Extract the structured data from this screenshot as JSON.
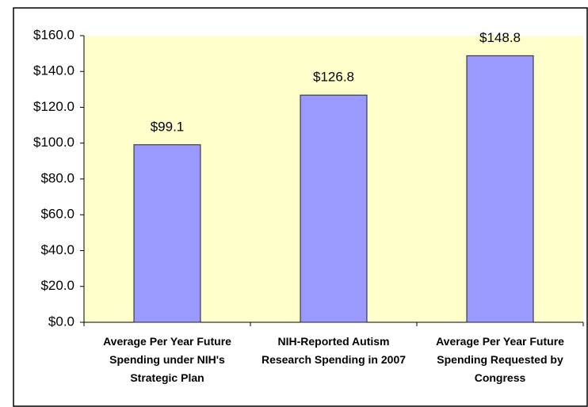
{
  "chart_data": {
    "type": "bar",
    "categories": [
      "Average Per Year Future Spending under NIH's Strategic Plan",
      "NIH-Reported Autism Research Spending in 2007",
      "Average Per Year Future Spending Requested by Congress"
    ],
    "values": [
      99.1,
      126.8,
      148.8
    ],
    "value_labels": [
      "$99.1",
      "$126.8",
      "$148.8"
    ],
    "color": "#9999ff",
    "ylim": [
      0,
      160
    ],
    "yticks": [
      {
        "value": 0,
        "label": "$0.0"
      },
      {
        "value": 20,
        "label": "$20.0"
      },
      {
        "value": 40,
        "label": "$40.0"
      },
      {
        "value": 60,
        "label": "$60.0"
      },
      {
        "value": 80,
        "label": "$80.0"
      },
      {
        "value": 100,
        "label": "$100.0"
      },
      {
        "value": 120,
        "label": "$120.0"
      },
      {
        "value": 140,
        "label": "$140.0"
      },
      {
        "value": 160,
        "label": "$160.0"
      }
    ],
    "grid": false
  }
}
